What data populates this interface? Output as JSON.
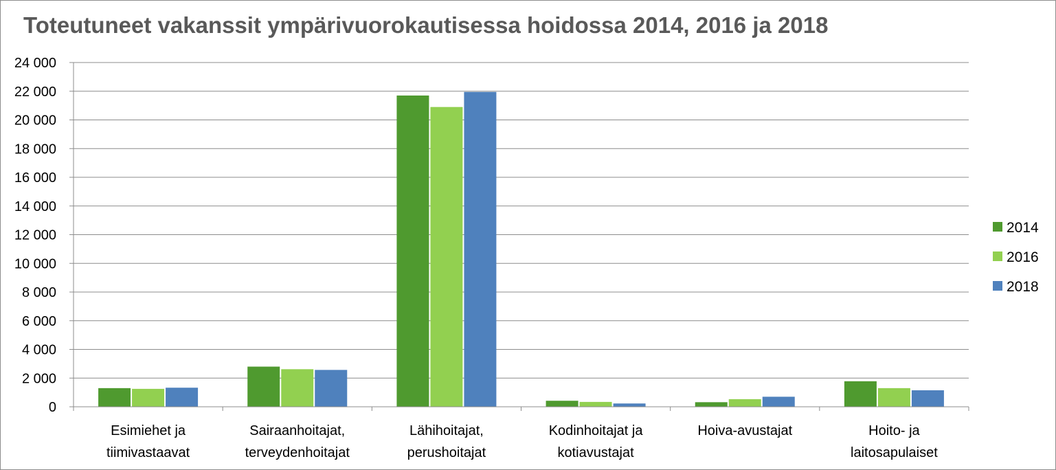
{
  "chart_data": {
    "type": "bar",
    "title": "Toteutuneet vakanssit ympärivuorokautisessa hoidossa 2014, 2016 ja 2018",
    "xlabel": "",
    "ylabel": "",
    "ylim": [
      0,
      24000
    ],
    "y_ticks": [
      "0",
      "2 000",
      "4 000",
      "6 000",
      "8 000",
      "10 000",
      "12 000",
      "14 000",
      "16 000",
      "18 000",
      "20 000",
      "22 000",
      "24 000"
    ],
    "grid": true,
    "legend_position": "right",
    "categories": [
      [
        "Esimiehet ja",
        "tiimivastaavat"
      ],
      [
        "Sairaanhoitajat,",
        "terveydenhoitajat"
      ],
      [
        "Lähihoitajat,",
        "perushoitajat"
      ],
      [
        "Kodinhoitajat ja",
        "kotiavustajat"
      ],
      [
        "Hoiva-avustajat"
      ],
      [
        "Hoito- ja",
        "laitosapulaiset"
      ]
    ],
    "series": [
      {
        "name": "2014",
        "color": "#4f9a2f",
        "values": [
          1300,
          2800,
          21700,
          420,
          320,
          1780
        ]
      },
      {
        "name": "2016",
        "color": "#92d050",
        "values": [
          1250,
          2620,
          20900,
          340,
          530,
          1300
        ]
      },
      {
        "name": "2018",
        "color": "#4f81bd",
        "values": [
          1330,
          2570,
          21950,
          230,
          700,
          1150
        ]
      }
    ]
  }
}
